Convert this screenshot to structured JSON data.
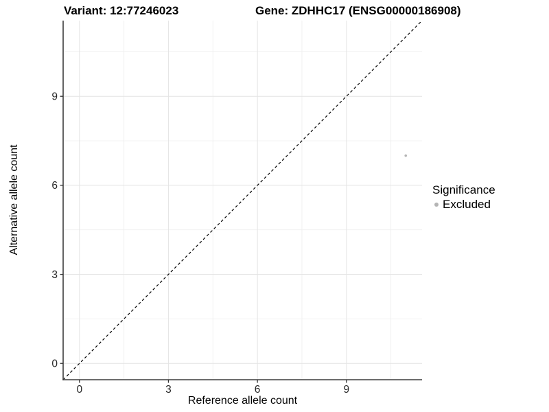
{
  "header": {
    "variant_title": "Variant: 12:77246023",
    "gene_title": "Gene: ZDHHC17 (ENSG00000186908)"
  },
  "axes": {
    "x_label": "Reference allele count",
    "y_label": "Alternative allele count",
    "x_tick_labels": [
      "0",
      "3",
      "6",
      "9"
    ],
    "y_tick_labels": [
      "0",
      "3",
      "6",
      "9"
    ]
  },
  "legend": {
    "title": "Significance",
    "items": [
      {
        "label": "Excluded",
        "color": "#b4b4b4"
      }
    ]
  },
  "colors": {
    "background": "#ffffff",
    "grid_major": "#e4e4e4",
    "grid_minor": "#efefef",
    "axis_line": "#3c3c3c",
    "tick_mark": "#333333",
    "tick_text": "#262626",
    "reference_line": "#000000",
    "point": "#b4b4b4",
    "title_text": "#000000"
  },
  "chart_data": {
    "type": "scatter",
    "title": "Variant: 12:77246023   Gene: ZDHHC17 (ENSG00000186908)",
    "xlabel": "Reference allele count",
    "ylabel": "Alternative allele count",
    "xlim": [
      -0.55,
      11.55
    ],
    "ylim": [
      -0.55,
      11.55
    ],
    "x_ticks": [
      0,
      3,
      6,
      9
    ],
    "y_ticks": [
      0,
      3,
      6,
      9
    ],
    "x_minor_ticks": [
      1.5,
      4.5,
      7.5,
      10.5
    ],
    "y_minor_ticks": [
      1.5,
      4.5,
      7.5,
      10.5
    ],
    "grid": true,
    "legend_position": "right",
    "series": [
      {
        "name": "Excluded",
        "color": "#b4b4b4",
        "points": [
          {
            "x": 11,
            "y": 7
          }
        ]
      }
    ],
    "reference_line": {
      "style": "dashed",
      "slope": 1,
      "intercept": 0,
      "color": "#000000",
      "description": "identity line y = x"
    }
  }
}
